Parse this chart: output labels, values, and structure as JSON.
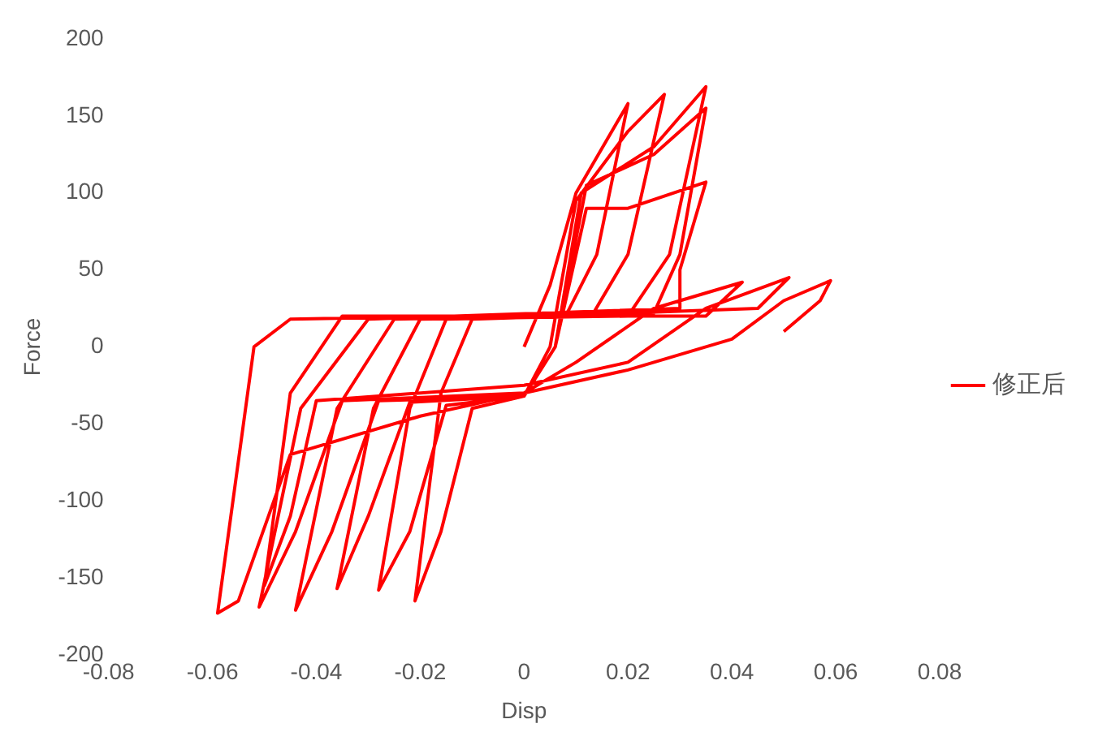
{
  "chart_data": {
    "type": "line",
    "xlabel": "Disp",
    "ylabel": "Force",
    "xlim": [
      -0.08,
      0.08
    ],
    "xticks": [
      -0.08,
      -0.06,
      -0.04,
      -0.02,
      0,
      0.02,
      0.04,
      0.06,
      0.08
    ],
    "ylim": [
      -200,
      200
    ],
    "yticks": [
      -200,
      -150,
      -100,
      -50,
      0,
      50,
      100,
      150,
      200
    ],
    "grid": false,
    "legend": "right",
    "marker": "none",
    "line_style": "solid",
    "series": [
      {
        "name": "修正后",
        "color": "#ff0000",
        "x": [
          0,
          0.005,
          0.01,
          0.02,
          0.014,
          0.008,
          -0.01,
          -0.016,
          -0.021,
          -0.016,
          -0.01,
          0,
          0.005,
          0.01,
          0.02,
          0.027,
          0.02,
          0.013,
          -0.015,
          -0.022,
          -0.028,
          -0.022,
          -0.015,
          0,
          0.006,
          0.011,
          0.025,
          0.035,
          0.028,
          0.02,
          -0.02,
          -0.029,
          -0.036,
          -0.03,
          -0.022,
          0,
          0.006,
          0.012,
          0.025,
          0.035,
          0.03,
          0.025,
          -0.025,
          -0.036,
          -0.044,
          -0.037,
          -0.028,
          0,
          0.006,
          0.012,
          0.02,
          0.035,
          0.03,
          0.03,
          -0.03,
          -0.043,
          -0.051,
          -0.044,
          -0.035,
          0,
          0.01,
          0.025,
          0.042,
          0.035,
          -0.035,
          -0.045,
          -0.05,
          -0.045,
          -0.04,
          0,
          0.02,
          0.035,
          0.051,
          0.045,
          0.02,
          -0.045,
          -0.052,
          -0.059,
          -0.055,
          -0.045,
          -0.02,
          0.02,
          0.04,
          0.05,
          0.059,
          0.057,
          0.05
        ],
        "values": [
          0,
          40,
          100,
          158,
          60,
          20,
          18,
          -30,
          -165,
          -120,
          -40,
          -32,
          0,
          95,
          140,
          164,
          60,
          20,
          18,
          -40,
          -158,
          -120,
          -38,
          -32,
          0,
          100,
          130,
          169,
          60,
          20,
          18,
          -40,
          -157,
          -110,
          -36,
          -32,
          0,
          105,
          125,
          155,
          60,
          22,
          18,
          -40,
          -171,
          -120,
          -35,
          -32,
          0,
          90,
          90,
          107,
          50,
          25,
          18,
          -40,
          -169,
          -120,
          -35,
          -30,
          -10,
          25,
          42,
          20,
          20,
          -30,
          -155,
          -110,
          -35,
          -25,
          -10,
          25,
          45,
          25,
          22,
          18,
          0,
          -173,
          -165,
          -70,
          -45,
          -15,
          5,
          30,
          43,
          30,
          10
        ]
      }
    ]
  }
}
